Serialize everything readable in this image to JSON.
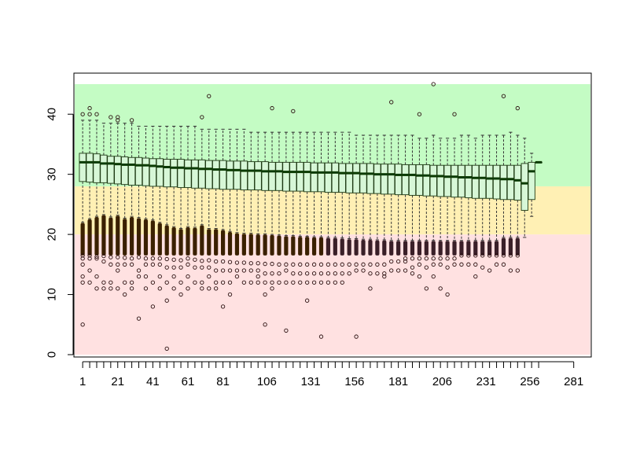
{
  "chart_data": {
    "type": "box",
    "title": "",
    "xlabel": "",
    "ylabel": "",
    "xlim": [
      -4,
      291
    ],
    "ylim": [
      0,
      45
    ],
    "grid": false,
    "legend": "none",
    "x_ticks": [
      1,
      21,
      41,
      61,
      81,
      106,
      131,
      156,
      181,
      206,
      231,
      256,
      281
    ],
    "y_ticks": [
      0,
      10,
      20,
      30,
      40
    ],
    "bands": [
      {
        "from": 0,
        "to": 20,
        "color": "#ffe1e1"
      },
      {
        "from": 20,
        "to": 28,
        "color": "#fff0b4"
      },
      {
        "from": 28,
        "to": 45,
        "color": "#c4fcc4"
      }
    ],
    "box_color": "#d7f7d7",
    "box_stroke": "#1e3a14",
    "median_color": "#0a3a00",
    "outlier_color": "#2a0f0f",
    "boxes": [
      {
        "pos": 1,
        "q1": 28.8,
        "med": 32,
        "q3": 33.5,
        "lo": 22.0,
        "hi": 39,
        "out_lo": [
          16.5,
          16,
          15,
          13,
          12,
          5
        ],
        "out_hi": [
          40
        ]
      },
      {
        "pos": 5,
        "q1": 28.7,
        "med": 32,
        "q3": 33.5,
        "lo": 22.6,
        "hi": 39,
        "out_lo": [
          16.5,
          16,
          14,
          12
        ],
        "out_hi": [
          41,
          40
        ]
      },
      {
        "pos": 9,
        "q1": 28.6,
        "med": 32,
        "q3": 33.4,
        "lo": 23.0,
        "hi": 39,
        "out_lo": [
          16.3,
          16,
          13,
          11
        ],
        "out_hi": [
          40
        ]
      },
      {
        "pos": 13,
        "q1": 28.6,
        "med": 31.8,
        "q3": 33.2,
        "lo": 23.3,
        "hi": 38.5,
        "out_lo": [
          16.4,
          15.5,
          12,
          11
        ],
        "out_hi": []
      },
      {
        "pos": 17,
        "q1": 28.5,
        "med": 31.8,
        "q3": 33.0,
        "lo": 22.9,
        "hi": 38.5,
        "out_lo": [
          16.2,
          15,
          12,
          11
        ],
        "out_hi": [
          39.5
        ]
      },
      {
        "pos": 21,
        "q1": 28.4,
        "med": 31.7,
        "q3": 33.0,
        "lo": 23.2,
        "hi": 38.5,
        "out_lo": [
          16.2,
          15,
          14,
          11
        ],
        "out_hi": [
          39,
          39.5
        ]
      },
      {
        "pos": 25,
        "q1": 28.3,
        "med": 31.6,
        "q3": 32.9,
        "lo": 22.7,
        "hi": 38.5,
        "out_lo": [
          16.1,
          15,
          12,
          10
        ],
        "out_hi": []
      },
      {
        "pos": 29,
        "q1": 28.2,
        "med": 31.6,
        "q3": 32.8,
        "lo": 23.0,
        "hi": 38.5,
        "out_lo": [
          16.0,
          15,
          12,
          11
        ],
        "out_hi": [
          39
        ]
      },
      {
        "pos": 33,
        "q1": 28.2,
        "med": 31.5,
        "q3": 32.8,
        "lo": 22.8,
        "hi": 38.0,
        "out_lo": [
          16.2,
          14,
          13,
          6
        ],
        "out_hi": []
      },
      {
        "pos": 37,
        "q1": 28.1,
        "med": 31.5,
        "q3": 32.7,
        "lo": 22.6,
        "hi": 38.0,
        "out_lo": [
          16.0,
          15,
          13,
          11
        ],
        "out_hi": []
      },
      {
        "pos": 41,
        "q1": 28.0,
        "med": 31.4,
        "q3": 32.6,
        "lo": 22.4,
        "hi": 38.0,
        "out_lo": [
          16.0,
          15,
          12,
          8
        ],
        "out_hi": []
      },
      {
        "pos": 45,
        "q1": 28.0,
        "med": 31.3,
        "q3": 32.6,
        "lo": 22.0,
        "hi": 38.0,
        "out_lo": [
          16.0,
          15,
          13,
          11
        ],
        "out_hi": []
      },
      {
        "pos": 49,
        "q1": 27.9,
        "med": 31.2,
        "q3": 32.5,
        "lo": 21.6,
        "hi": 38.0,
        "out_lo": [
          15.9,
          14.5,
          12,
          9,
          1
        ],
        "out_hi": []
      },
      {
        "pos": 53,
        "q1": 27.9,
        "med": 31.1,
        "q3": 32.5,
        "lo": 21.3,
        "hi": 38.0,
        "out_lo": [
          15.8,
          14.5,
          13,
          11
        ],
        "out_hi": []
      },
      {
        "pos": 57,
        "q1": 27.8,
        "med": 31.1,
        "q3": 32.5,
        "lo": 21.0,
        "hi": 38.0,
        "out_lo": [
          15.7,
          14.5,
          12,
          10
        ],
        "out_hi": []
      },
      {
        "pos": 61,
        "q1": 27.8,
        "med": 31.0,
        "q3": 32.4,
        "lo": 21.3,
        "hi": 38.0,
        "out_lo": [
          16.0,
          15,
          13,
          11
        ],
        "out_hi": []
      },
      {
        "pos": 65,
        "q1": 27.7,
        "med": 31.0,
        "q3": 32.4,
        "lo": 21.2,
        "hi": 38.0,
        "out_lo": [
          15.8,
          14.5,
          12
        ],
        "out_hi": []
      },
      {
        "pos": 69,
        "q1": 27.7,
        "med": 30.9,
        "q3": 32.4,
        "lo": 21.6,
        "hi": 37.5,
        "out_lo": [
          15.6,
          14.5,
          12,
          11
        ],
        "out_hi": [
          39.5
        ]
      },
      {
        "pos": 73,
        "q1": 27.6,
        "med": 30.9,
        "q3": 32.3,
        "lo": 21.0,
        "hi": 37.5,
        "out_lo": [
          15.7,
          14.5,
          13,
          11
        ],
        "out_hi": [
          43
        ]
      },
      {
        "pos": 77,
        "q1": 27.6,
        "med": 30.8,
        "q3": 32.3,
        "lo": 21.0,
        "hi": 37.5,
        "out_lo": [
          15.5,
          14,
          12,
          11
        ],
        "out_hi": []
      },
      {
        "pos": 81,
        "q1": 27.5,
        "med": 30.8,
        "q3": 32.3,
        "lo": 20.8,
        "hi": 37.5,
        "out_lo": [
          15.5,
          14,
          12,
          8
        ],
        "out_hi": []
      },
      {
        "pos": 85,
        "q1": 27.5,
        "med": 30.7,
        "q3": 32.2,
        "lo": 20.5,
        "hi": 37.5,
        "out_lo": [
          15.4,
          14,
          12,
          10
        ],
        "out_hi": []
      },
      {
        "pos": 89,
        "q1": 27.5,
        "med": 30.7,
        "q3": 32.2,
        "lo": 20.3,
        "hi": 37.5,
        "out_lo": [
          15.3,
          14,
          13
        ],
        "out_hi": []
      },
      {
        "pos": 93,
        "q1": 27.4,
        "med": 30.6,
        "q3": 32.2,
        "lo": 20.2,
        "hi": 37.5,
        "out_lo": [
          15.3,
          14,
          12
        ],
        "out_hi": []
      },
      {
        "pos": 97,
        "q1": 27.4,
        "med": 30.6,
        "q3": 32.1,
        "lo": 20.2,
        "hi": 37.0,
        "out_lo": [
          15.2,
          14,
          12
        ],
        "out_hi": []
      },
      {
        "pos": 101,
        "q1": 27.4,
        "med": 30.6,
        "q3": 32.1,
        "lo": 20.1,
        "hi": 37.0,
        "out_lo": [
          15.2,
          14,
          13,
          12
        ],
        "out_hi": []
      },
      {
        "pos": 105,
        "q1": 27.3,
        "med": 30.5,
        "q3": 32.1,
        "lo": 20.1,
        "hi": 37.0,
        "out_lo": [
          15.1,
          13.5,
          12,
          10,
          5
        ],
        "out_hi": []
      },
      {
        "pos": 109,
        "q1": 27.3,
        "med": 30.5,
        "q3": 32.0,
        "lo": 20.0,
        "hi": 37.0,
        "out_lo": [
          15.1,
          13.5,
          12,
          11
        ],
        "out_hi": [
          41
        ]
      },
      {
        "pos": 113,
        "q1": 27.3,
        "med": 30.5,
        "q3": 32.0,
        "lo": 19.9,
        "hi": 37.0,
        "out_lo": [
          15.0,
          13.5,
          12
        ],
        "out_hi": []
      },
      {
        "pos": 117,
        "q1": 27.2,
        "med": 30.4,
        "q3": 32.0,
        "lo": 19.8,
        "hi": 37.0,
        "out_lo": [
          15.0,
          14,
          12,
          4
        ],
        "out_hi": []
      },
      {
        "pos": 121,
        "q1": 27.2,
        "med": 30.4,
        "q3": 32.0,
        "lo": 19.8,
        "hi": 37.0,
        "out_lo": [
          15.0,
          13.5,
          12
        ],
        "out_hi": [
          40.5
        ]
      },
      {
        "pos": 125,
        "q1": 27.2,
        "med": 30.4,
        "q3": 32.0,
        "lo": 19.7,
        "hi": 37.0,
        "out_lo": [
          15.0,
          13.5,
          12
        ],
        "out_hi": []
      },
      {
        "pos": 129,
        "q1": 27.1,
        "med": 30.4,
        "q3": 32.0,
        "lo": 19.7,
        "hi": 37.0,
        "out_lo": [
          15.0,
          13.5,
          12,
          9
        ],
        "out_hi": []
      },
      {
        "pos": 133,
        "q1": 27.1,
        "med": 30.3,
        "q3": 31.9,
        "lo": 19.6,
        "hi": 37.0,
        "out_lo": [
          15.0,
          13.5,
          12
        ],
        "out_hi": []
      },
      {
        "pos": 137,
        "q1": 27.1,
        "med": 30.3,
        "q3": 31.9,
        "lo": 19.6,
        "hi": 37.0,
        "out_lo": [
          15.0,
          13.5,
          12,
          3
        ],
        "out_hi": []
      },
      {
        "pos": 141,
        "q1": 27.0,
        "med": 30.3,
        "q3": 31.9,
        "lo": 19.5,
        "hi": 37.0,
        "out_lo": [
          15.0,
          13.5,
          12
        ],
        "out_hi": []
      },
      {
        "pos": 145,
        "q1": 27.0,
        "med": 30.3,
        "q3": 31.9,
        "lo": 19.5,
        "hi": 37.0,
        "out_lo": [
          15.0,
          13.5,
          12
        ],
        "out_hi": []
      },
      {
        "pos": 149,
        "q1": 27.0,
        "med": 30.2,
        "q3": 31.8,
        "lo": 19.4,
        "hi": 37.0,
        "out_lo": [
          15.0,
          13.5,
          12
        ],
        "out_hi": []
      },
      {
        "pos": 153,
        "q1": 26.9,
        "med": 30.2,
        "q3": 31.8,
        "lo": 19.3,
        "hi": 37.0,
        "out_lo": [
          15.0,
          13.5
        ],
        "out_hi": []
      },
      {
        "pos": 157,
        "q1": 26.9,
        "med": 30.2,
        "q3": 31.8,
        "lo": 19.3,
        "hi": 36.5,
        "out_lo": [
          15.0,
          14,
          3
        ],
        "out_hi": []
      },
      {
        "pos": 161,
        "q1": 26.9,
        "med": 30.1,
        "q3": 31.8,
        "lo": 19.2,
        "hi": 36.5,
        "out_lo": [
          15.0,
          14
        ],
        "out_hi": []
      },
      {
        "pos": 165,
        "q1": 26.8,
        "med": 30.1,
        "q3": 31.8,
        "lo": 19.2,
        "hi": 36.5,
        "out_lo": [
          15.0,
          13.5,
          11
        ],
        "out_hi": []
      },
      {
        "pos": 169,
        "q1": 26.8,
        "med": 30.0,
        "q3": 31.7,
        "lo": 19.1,
        "hi": 36.5,
        "out_lo": [
          15.0,
          13.5
        ],
        "out_hi": []
      },
      {
        "pos": 173,
        "q1": 26.7,
        "med": 30.0,
        "q3": 31.7,
        "lo": 19.1,
        "hi": 36.5,
        "out_lo": [
          15.0,
          13.5,
          13
        ],
        "out_hi": []
      },
      {
        "pos": 177,
        "q1": 26.7,
        "med": 30.0,
        "q3": 31.7,
        "lo": 19.0,
        "hi": 36.5,
        "out_lo": [
          15.5,
          14
        ],
        "out_hi": [
          42
        ]
      },
      {
        "pos": 181,
        "q1": 26.6,
        "med": 29.9,
        "q3": 31.7,
        "lo": 19.0,
        "hi": 36.5,
        "out_lo": [
          15.5,
          14
        ],
        "out_hi": []
      },
      {
        "pos": 185,
        "q1": 26.6,
        "med": 29.9,
        "q3": 31.6,
        "lo": 19.0,
        "hi": 36.5,
        "out_lo": [
          15.5,
          14,
          16
        ],
        "out_hi": []
      },
      {
        "pos": 189,
        "q1": 26.5,
        "med": 29.9,
        "q3": 31.6,
        "lo": 19.0,
        "hi": 36.5,
        "out_lo": [
          16.0,
          14.5,
          13.5
        ],
        "out_hi": []
      },
      {
        "pos": 193,
        "q1": 26.5,
        "med": 29.8,
        "q3": 31.6,
        "lo": 19.0,
        "hi": 36.0,
        "out_lo": [
          16.0,
          15,
          13
        ],
        "out_hi": [
          40
        ]
      },
      {
        "pos": 197,
        "q1": 26.4,
        "med": 29.8,
        "q3": 31.6,
        "lo": 19.0,
        "hi": 36.0,
        "out_lo": [
          16.0,
          14.5,
          11
        ],
        "out_hi": []
      },
      {
        "pos": 201,
        "q1": 26.4,
        "med": 29.7,
        "q3": 31.5,
        "lo": 19.0,
        "hi": 36.5,
        "out_lo": [
          16.0,
          15,
          13
        ],
        "out_hi": [
          45
        ]
      },
      {
        "pos": 205,
        "q1": 26.3,
        "med": 29.7,
        "q3": 31.5,
        "lo": 19.0,
        "hi": 36.0,
        "out_lo": [
          16.0,
          15,
          11
        ],
        "out_hi": []
      },
      {
        "pos": 209,
        "q1": 26.3,
        "med": 29.6,
        "q3": 31.5,
        "lo": 19.0,
        "hi": 36.0,
        "out_lo": [
          16.0,
          14.5,
          10
        ],
        "out_hi": []
      },
      {
        "pos": 213,
        "q1": 26.2,
        "med": 29.6,
        "q3": 31.5,
        "lo": 19.0,
        "hi": 36.0,
        "out_lo": [
          16.0,
          15
        ],
        "out_hi": [
          40
        ]
      },
      {
        "pos": 217,
        "q1": 26.2,
        "med": 29.5,
        "q3": 31.5,
        "lo": 19.0,
        "hi": 36.5,
        "out_lo": [
          16.5,
          15
        ],
        "out_hi": []
      },
      {
        "pos": 221,
        "q1": 26.1,
        "med": 29.5,
        "q3": 31.5,
        "lo": 19.0,
        "hi": 36.5,
        "out_lo": [
          16.5,
          15
        ],
        "out_hi": []
      },
      {
        "pos": 225,
        "q1": 26.0,
        "med": 29.4,
        "q3": 31.5,
        "lo": 19.0,
        "hi": 36.0,
        "out_lo": [
          16.5,
          15,
          13
        ],
        "out_hi": []
      },
      {
        "pos": 229,
        "q1": 26.0,
        "med": 29.4,
        "q3": 31.5,
        "lo": 19.0,
        "hi": 36.5,
        "out_lo": [
          16.5,
          14.5
        ],
        "out_hi": []
      },
      {
        "pos": 233,
        "q1": 26.0,
        "med": 29.3,
        "q3": 31.5,
        "lo": 19.0,
        "hi": 36.5,
        "out_lo": [
          16.5,
          14
        ],
        "out_hi": []
      },
      {
        "pos": 237,
        "q1": 25.9,
        "med": 29.3,
        "q3": 31.5,
        "lo": 19.0,
        "hi": 36.5,
        "out_lo": [
          16.5,
          15
        ],
        "out_hi": []
      },
      {
        "pos": 241,
        "q1": 25.8,
        "med": 29.2,
        "q3": 31.5,
        "lo": 19.5,
        "hi": 36.5,
        "out_lo": [
          16.5,
          15
        ],
        "out_hi": [
          43
        ]
      },
      {
        "pos": 245,
        "q1": 25.8,
        "med": 29.2,
        "q3": 31.5,
        "lo": 19.5,
        "hi": 37.0,
        "out_lo": [
          16.5,
          14
        ],
        "out_hi": []
      },
      {
        "pos": 249,
        "q1": 25.7,
        "med": 29.0,
        "q3": 31.5,
        "lo": 19.5,
        "hi": 36.5,
        "out_lo": [
          16.5,
          14
        ],
        "out_hi": [
          41
        ]
      },
      {
        "pos": 253,
        "q1": 24.0,
        "med": 28.5,
        "q3": 31.8,
        "lo": 19.5,
        "hi": 36.0,
        "out_lo": [],
        "out_hi": []
      },
      {
        "pos": 257,
        "q1": 25.8,
        "med": 30.5,
        "q3": 32.0,
        "lo": 23.0,
        "hi": 33.5,
        "out_lo": [],
        "out_hi": []
      },
      {
        "pos": 261,
        "q1": 32.0,
        "med": 32.0,
        "q3": 32.0,
        "lo": 32.0,
        "hi": 32.0,
        "out_lo": [],
        "out_hi": []
      }
    ]
  }
}
